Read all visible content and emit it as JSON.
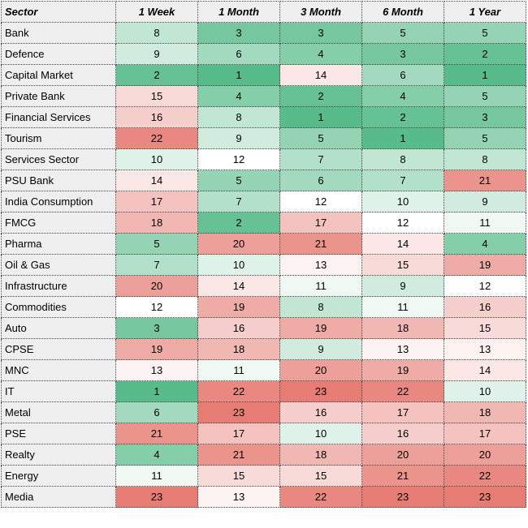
{
  "chart_data": {
    "type": "heatmap",
    "row_header": "Sector",
    "columns": [
      "1 Week",
      "1 Month",
      "3 Month",
      "6 Month",
      "1 Year"
    ],
    "rows": [
      {
        "sector": "Bank",
        "values": [
          8,
          3,
          3,
          5,
          5
        ]
      },
      {
        "sector": "Defence",
        "values": [
          9,
          6,
          4,
          3,
          2
        ]
      },
      {
        "sector": "Capital Market",
        "values": [
          2,
          1,
          14,
          6,
          1
        ]
      },
      {
        "sector": "Private Bank",
        "values": [
          15,
          4,
          2,
          4,
          5
        ]
      },
      {
        "sector": "Financial Services",
        "values": [
          16,
          8,
          1,
          2,
          3
        ]
      },
      {
        "sector": "Tourism",
        "values": [
          22,
          9,
          5,
          1,
          5
        ]
      },
      {
        "sector": "Services Sector",
        "values": [
          10,
          12,
          7,
          8,
          8
        ]
      },
      {
        "sector": "PSU Bank",
        "values": [
          14,
          5,
          6,
          7,
          21
        ]
      },
      {
        "sector": "India Consumption",
        "values": [
          17,
          7,
          12,
          10,
          9
        ]
      },
      {
        "sector": "FMCG",
        "values": [
          18,
          2,
          17,
          12,
          11
        ]
      },
      {
        "sector": "Pharma",
        "values": [
          5,
          20,
          21,
          14,
          4
        ]
      },
      {
        "sector": "Oil & Gas",
        "values": [
          7,
          10,
          13,
          15,
          19
        ]
      },
      {
        "sector": "Infrastructure",
        "values": [
          20,
          14,
          11,
          9,
          12
        ]
      },
      {
        "sector": "Commodities",
        "values": [
          12,
          19,
          8,
          11,
          16
        ]
      },
      {
        "sector": "Auto",
        "values": [
          3,
          16,
          19,
          18,
          15
        ]
      },
      {
        "sector": "CPSE",
        "values": [
          19,
          18,
          9,
          13,
          13
        ]
      },
      {
        "sector": "MNC",
        "values": [
          13,
          11,
          20,
          19,
          14
        ]
      },
      {
        "sector": "IT",
        "values": [
          1,
          22,
          23,
          22,
          10
        ]
      },
      {
        "sector": "Metal",
        "values": [
          6,
          23,
          16,
          17,
          18
        ]
      },
      {
        "sector": "PSE",
        "values": [
          21,
          17,
          10,
          16,
          17
        ]
      },
      {
        "sector": "Realty",
        "values": [
          4,
          21,
          18,
          20,
          20
        ]
      },
      {
        "sector": "Energy",
        "values": [
          11,
          15,
          15,
          21,
          22
        ]
      },
      {
        "sector": "Media",
        "values": [
          23,
          13,
          22,
          23,
          23
        ]
      }
    ],
    "color_scale": {
      "low": "#57bb8a",
      "mid": "#ffffff",
      "high": "#e67c73",
      "min": 1,
      "midpoint": 12,
      "max": 23
    }
  }
}
